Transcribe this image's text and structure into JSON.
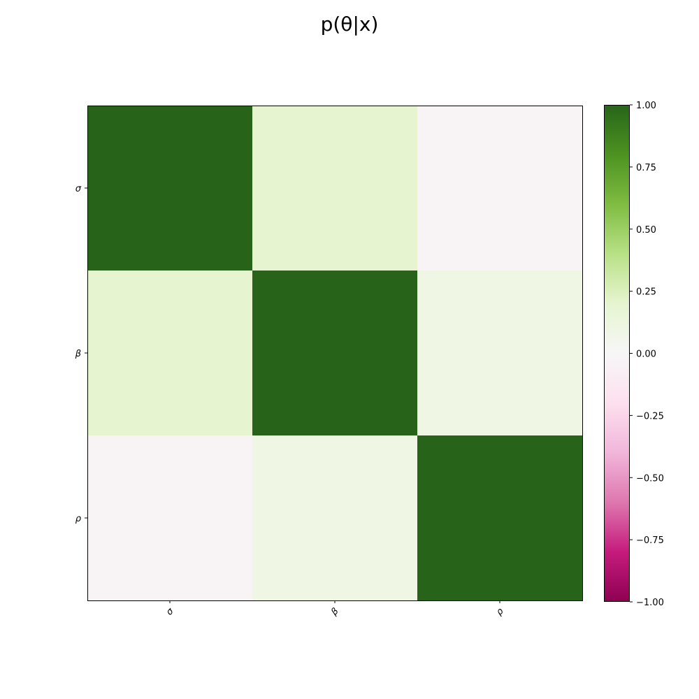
{
  "chart_data": {
    "type": "heatmap",
    "title": "p(θ|x)",
    "xlabel": "",
    "ylabel": "",
    "x_categories": [
      "σ",
      "β",
      "ρ"
    ],
    "y_categories": [
      "σ",
      "β",
      "ρ"
    ],
    "values": [
      [
        1.0,
        0.2,
        -0.03
      ],
      [
        0.2,
        1.0,
        0.1
      ],
      [
        -0.03,
        0.1,
        1.0
      ]
    ],
    "colorbar": {
      "colormap": "PiYG",
      "range": [
        -1.0,
        1.0
      ],
      "ticks": [
        1.0,
        0.75,
        0.5,
        0.25,
        0.0,
        -0.25,
        -0.5,
        -0.75,
        -1.0
      ],
      "tick_labels": [
        "1.00",
        "0.75",
        "0.50",
        "0.25",
        "0.00",
        "−0.25",
        "−0.50",
        "−0.75",
        "−1.00"
      ],
      "colors": [
        "#8e0152",
        "#c51b7d",
        "#de77ae",
        "#f1b6da",
        "#fde0ef",
        "#f7f7f7",
        "#e6f5d0",
        "#b8e186",
        "#7fbc41",
        "#4d9221",
        "#276419"
      ]
    },
    "grid": false
  }
}
